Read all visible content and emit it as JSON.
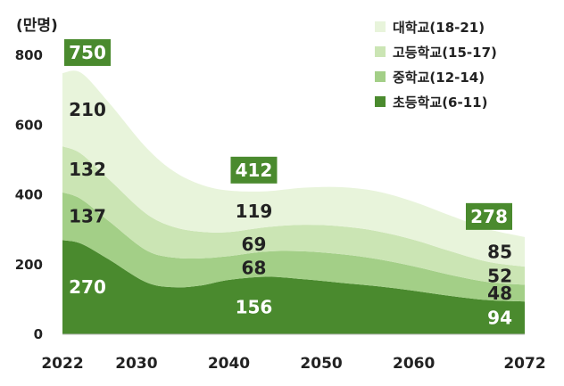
{
  "chart_data": {
    "type": "area",
    "stacked": true,
    "unit_label": "(만명)",
    "x_ticks": [
      "2022",
      "2030",
      "2040",
      "2050",
      "2060",
      "2072"
    ],
    "y_ticks": [
      "0",
      "200",
      "400",
      "600",
      "800"
    ],
    "ylim": [
      0,
      800
    ],
    "xlim": [
      2022,
      2072
    ],
    "legend_position": "top-right",
    "series": [
      {
        "name": "초등학교(6-11)",
        "color": "#4a8a2e",
        "x": [
          2022,
          2024,
          2027,
          2031,
          2034,
          2037,
          2040,
          2044,
          2048,
          2052,
          2056,
          2060,
          2064,
          2068,
          2072
        ],
        "values": [
          270,
          260,
          215,
          150,
          135,
          140,
          156,
          165,
          158,
          148,
          138,
          125,
          110,
          98,
          94
        ]
      },
      {
        "name": "중학교(12-14)",
        "color": "#a3cf87",
        "x": [
          2022,
          2024,
          2027,
          2031,
          2034,
          2037,
          2040,
          2044,
          2048,
          2052,
          2056,
          2060,
          2064,
          2068,
          2072
        ],
        "values": [
          137,
          128,
          110,
          92,
          85,
          78,
          68,
          72,
          80,
          82,
          78,
          70,
          60,
          52,
          48
        ]
      },
      {
        "name": "고등학교(15-17)",
        "color": "#cbe5b4",
        "x": [
          2022,
          2024,
          2027,
          2031,
          2034,
          2037,
          2040,
          2044,
          2048,
          2052,
          2056,
          2060,
          2064,
          2068,
          2072
        ],
        "values": [
          132,
          130,
          120,
          105,
          88,
          76,
          69,
          70,
          76,
          80,
          80,
          76,
          68,
          58,
          52
        ]
      },
      {
        "name": "대학교(18-21)",
        "color": "#e8f4db",
        "x": [
          2022,
          2024,
          2027,
          2031,
          2034,
          2037,
          2040,
          2044,
          2048,
          2052,
          2056,
          2060,
          2064,
          2068,
          2072
        ],
        "values": [
          210,
          232,
          220,
          190,
          160,
          135,
          119,
          103,
          106,
          112,
          114,
          109,
          102,
          94,
          85
        ]
      }
    ],
    "value_labels": [
      {
        "x": 2022,
        "items": [
          "270",
          "137",
          "132",
          "210"
        ],
        "total": "750"
      },
      {
        "x": 2040,
        "items": [
          "156",
          "68",
          "69",
          "119"
        ],
        "total": "412"
      },
      {
        "x": 2072,
        "items": [
          "94",
          "48",
          "52",
          "85"
        ],
        "total": "278"
      }
    ],
    "total_box_color": "#4a8a2e"
  }
}
